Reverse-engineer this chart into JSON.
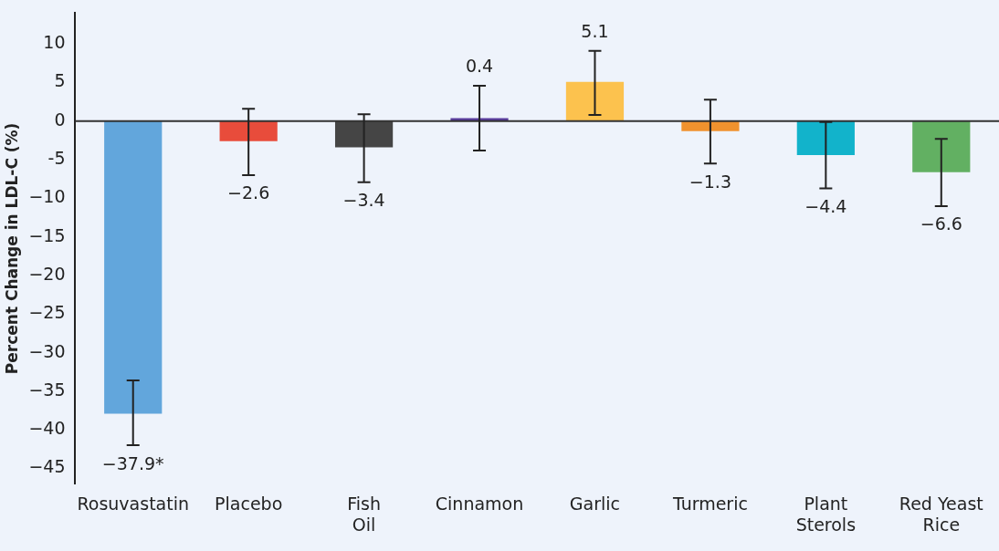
{
  "chart_data": {
    "type": "bar",
    "ylabel": "Percent Change in LDL-C (%)",
    "categories": [
      "Rosuvastatin",
      "Placebo",
      "Fish\nOil",
      "Cinnamon",
      "Garlic",
      "Turmeric",
      "Plant\nSterols",
      "Red Yeast\nRice"
    ],
    "values": [
      -37.9,
      -2.6,
      -3.4,
      0.4,
      5.1,
      -1.3,
      -4.4,
      -6.6
    ],
    "colors": [
      "#62a6dc",
      "#e84c3b",
      "#454545",
      "#5a3d9e",
      "#fcc24e",
      "#f0922e",
      "#12b3cb",
      "#62b062"
    ],
    "errors": [
      [
        -42.0,
        -33.6
      ],
      [
        -7.0,
        1.6
      ],
      [
        -7.9,
        0.9
      ],
      [
        -3.8,
        4.6
      ],
      [
        0.8,
        9.1
      ],
      [
        -5.5,
        2.8
      ],
      [
        -8.7,
        -0.1
      ],
      [
        -11.0,
        -2.3
      ]
    ],
    "value_labels": [
      "−37.9*",
      "−2.6",
      "−3.4",
      "0.4",
      "5.1",
      "−1.3",
      "−4.4",
      "−6.6"
    ],
    "ylim": [
      -47,
      14
    ],
    "yticks": [
      {
        "value": -45,
        "label": "−45"
      },
      {
        "value": -40,
        "label": "−40"
      },
      {
        "value": -35,
        "label": "−35"
      },
      {
        "value": -30,
        "label": "−30"
      },
      {
        "value": -25,
        "label": "−25"
      },
      {
        "value": -20,
        "label": "−20"
      },
      {
        "value": -15,
        "label": "−15"
      },
      {
        "value": -10,
        "label": "−10"
      },
      {
        "value": -5,
        "label": "-5"
      },
      0,
      5,
      10
    ],
    "ref_lines": [
      {
        "axis": "y",
        "value": 0,
        "color": "#333333"
      }
    ],
    "grid": false,
    "legend": false
  }
}
